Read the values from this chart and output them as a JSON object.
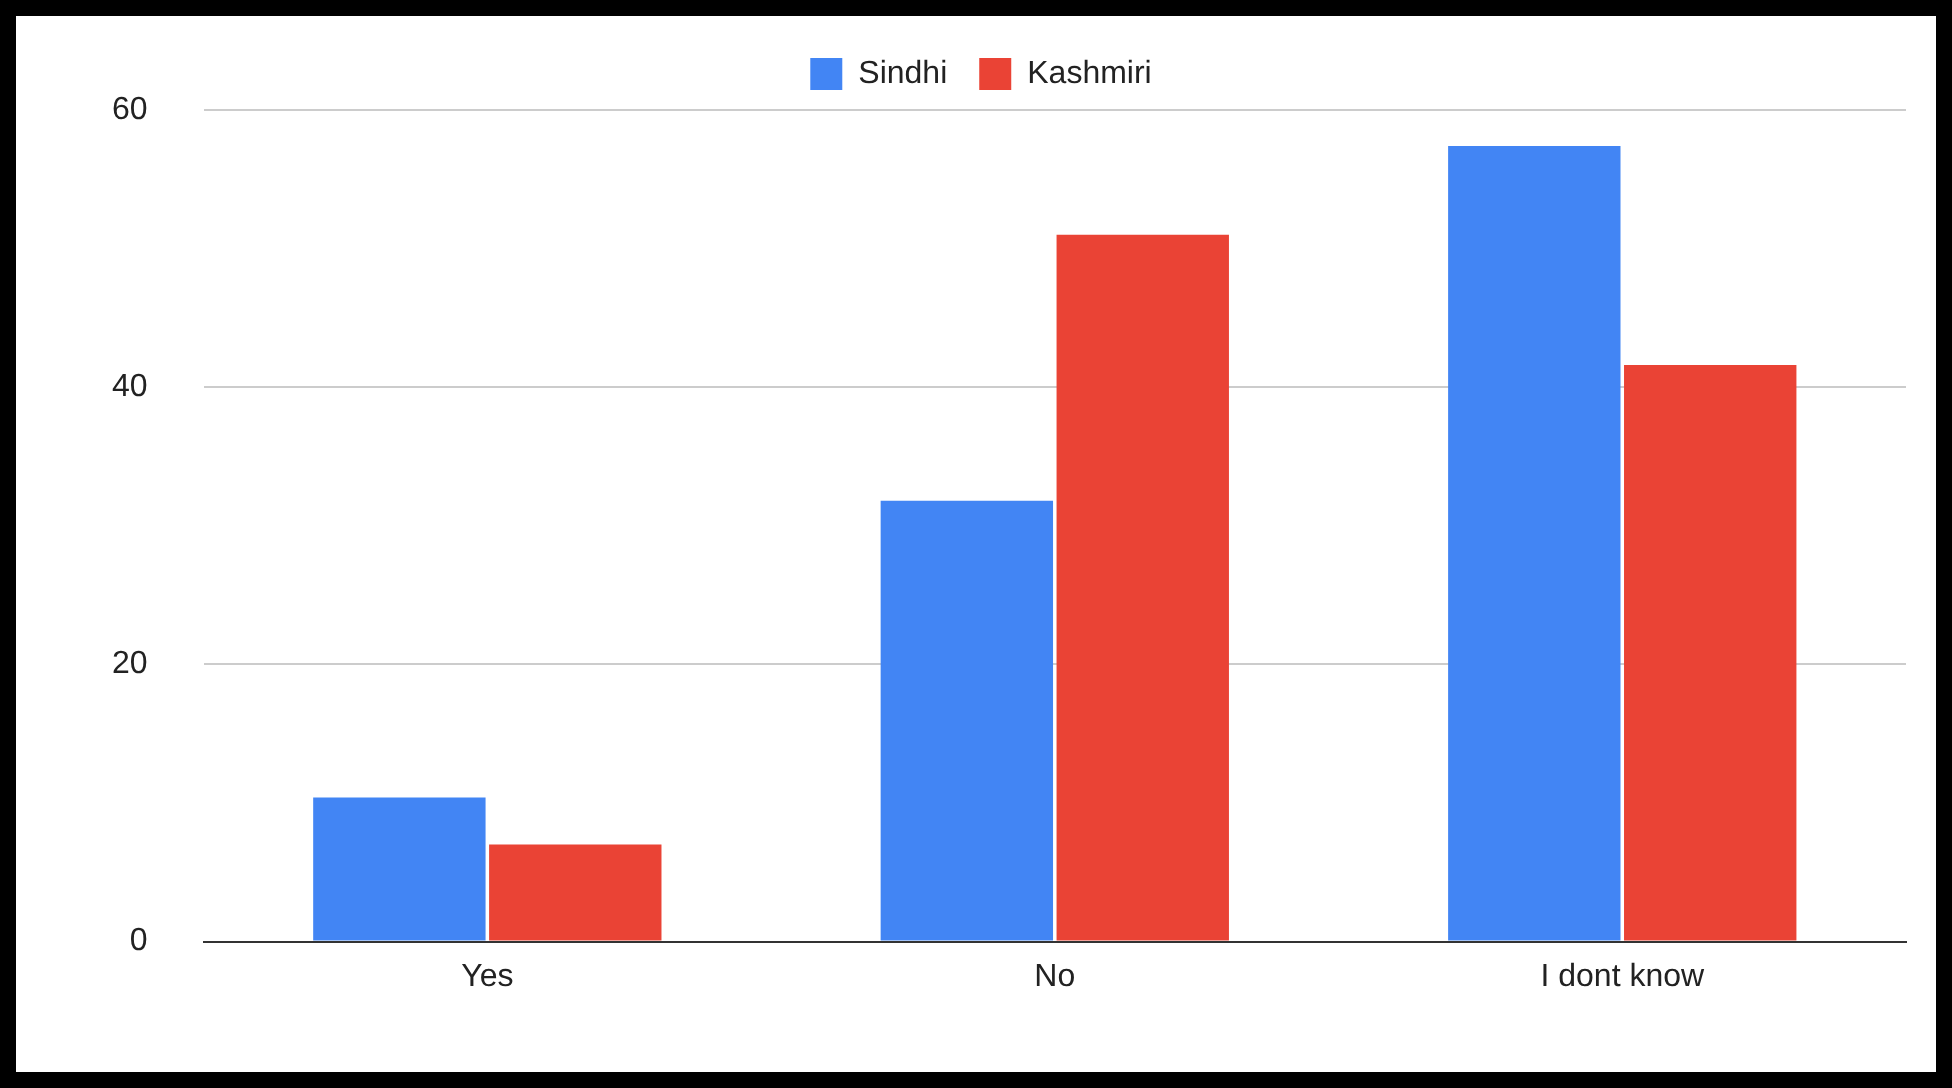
{
  "chart_data": {
    "type": "bar",
    "categories": [
      "Yes",
      "No",
      "I dont know"
    ],
    "series": [
      {
        "name": "Sindhi",
        "color": "#4285f4",
        "values": [
          10.4,
          31.8,
          57.4
        ]
      },
      {
        "name": "Kashmiri",
        "color": "#ea4335",
        "values": [
          7,
          51,
          41.6
        ]
      }
    ],
    "ylim": [
      0,
      60
    ],
    "yticks": [
      0,
      20,
      40,
      60
    ],
    "grid": "y",
    "legend": "top"
  }
}
